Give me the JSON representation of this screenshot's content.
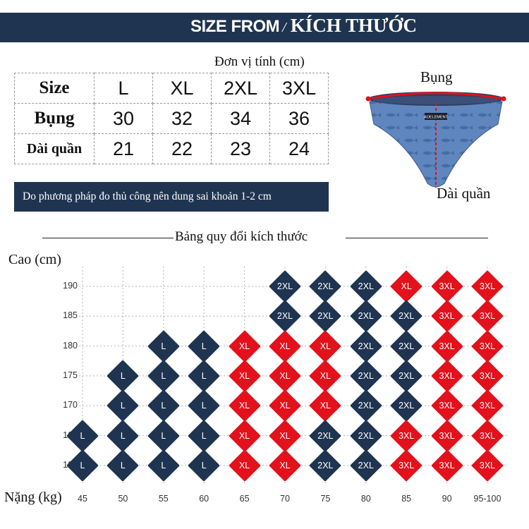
{
  "banner": {
    "title_en": "SIZE FROM",
    "separator": "/",
    "title_vi": "KÍCH THƯỚC"
  },
  "unit_label": "Đơn vị tính (cm)",
  "size_table": {
    "header_label": "Size",
    "sizes": [
      "L",
      "XL",
      "2XL",
      "3XL"
    ],
    "rows": [
      {
        "label": "Bụng",
        "values": [
          "30",
          "32",
          "34",
          "36"
        ]
      },
      {
        "label": "Dài quần",
        "values": [
          "21",
          "22",
          "23",
          "24"
        ]
      }
    ]
  },
  "note": "Do phương pháp đo thủ công nên dung sai khoản 1-2 cm",
  "product": {
    "label_waist": "Bụng",
    "label_length": "Dài quần",
    "brand_tag": "AOELEMENT"
  },
  "chart_title": "Bảng quy đổi kích thước",
  "chart_data": {
    "type": "table",
    "ylabel": "Cao (cm)",
    "xlabel": "Nặng (kg)",
    "heights": [
      "190",
      "185",
      "180",
      "175",
      "170",
      "165",
      "160"
    ],
    "weights": [
      "45",
      "50",
      "55",
      "60",
      "65",
      "70",
      "75",
      "80",
      "85",
      "90",
      "95-100"
    ],
    "grid": [
      [
        "",
        "",
        "",
        "",
        "",
        "2XL",
        "2XL",
        "2XL",
        "XL",
        "3XL",
        "3XL"
      ],
      [
        "",
        "",
        "",
        "",
        "",
        "2XL",
        "2XL",
        "2XL",
        "2XL",
        "3XL",
        "3XL"
      ],
      [
        "",
        "",
        "L",
        "L",
        "XL",
        "XL",
        "XL",
        "2XL",
        "2XL",
        "3XL",
        "3XL"
      ],
      [
        "",
        "L",
        "L",
        "L",
        "XL",
        "XL",
        "XL",
        "2XL",
        "2XL",
        "3XL",
        "3XL"
      ],
      [
        "",
        "L",
        "L",
        "L",
        "XL",
        "XL",
        "XL",
        "2XL",
        "2XL",
        "3XL",
        "3XL"
      ],
      [
        "L",
        "L",
        "L",
        "L",
        "XL",
        "XL",
        "2XL",
        "2XL",
        "3XL",
        "3XL",
        "3XL"
      ],
      [
        "L",
        "L",
        "L",
        "L",
        "XL",
        "XL",
        "2XL",
        "2XL",
        "3XL",
        "3XL",
        "3XL"
      ]
    ],
    "colors": {
      "L": "#1f3450",
      "XL": "#e3111b",
      "2XL": "#1f3450",
      "3XL": "#e3111b"
    }
  }
}
